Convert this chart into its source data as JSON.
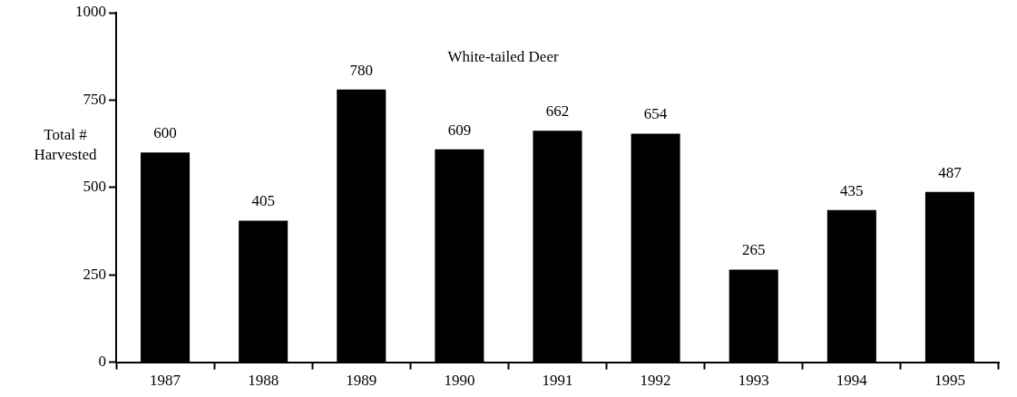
{
  "chart_data": {
    "type": "bar",
    "title": "White-tailed Deer",
    "ylabel": "Total # Harvested",
    "categories": [
      "1987",
      "1988",
      "1989",
      "1990",
      "1991",
      "1992",
      "1993",
      "1994",
      "1995"
    ],
    "values": [
      600,
      405,
      780,
      609,
      662,
      654,
      265,
      435,
      487
    ],
    "color": "#000000",
    "ylim": [
      0,
      1000
    ],
    "yticks": [
      0,
      250,
      500,
      750,
      1000
    ],
    "grid": false,
    "legend": false,
    "data_labels": true
  }
}
